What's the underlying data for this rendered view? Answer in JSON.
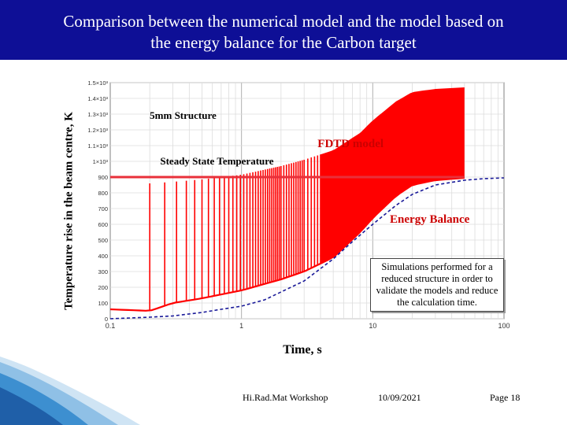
{
  "slide": {
    "title_line1": "Comparison between the numerical model and the model based on",
    "title_line2": "the energy balance for the Carbon target",
    "note": "Simulations performed for a reduced structure in order to validate the models and reduce the calculation time.",
    "footer": {
      "event": "Hi.Rad.Mat  Workshop",
      "date": "10/09/2021",
      "page": "Page 18"
    },
    "colors": {
      "title_bg": "#0e0f96",
      "title_text": "#ffffff",
      "fdtd": "#ff0000",
      "steady": "#e8303a",
      "energy": "#1a1a99",
      "label_red": "#cc0000"
    }
  },
  "chart_data": {
    "type": "line",
    "xlabel": "Time, s",
    "ylabel": "Temperature rise in the beam centre, K",
    "x_scale": "log",
    "xlim": [
      0.1,
      100
    ],
    "ylim": [
      0,
      1500
    ],
    "grid": true,
    "x_ticks": [
      {
        "value": 0.1,
        "label": "0.1"
      },
      {
        "value": 1,
        "label": "1"
      },
      {
        "value": 10,
        "label": "10"
      },
      {
        "value": 100,
        "label": "100"
      }
    ],
    "y_ticks": [
      {
        "value": 0,
        "label": "0"
      },
      {
        "value": 100,
        "label": "100"
      },
      {
        "value": 200,
        "label": "200"
      },
      {
        "value": 300,
        "label": "300"
      },
      {
        "value": 400,
        "label": "400"
      },
      {
        "value": 500,
        "label": "500"
      },
      {
        "value": 600,
        "label": "600"
      },
      {
        "value": 700,
        "label": "700"
      },
      {
        "value": 800,
        "label": "800"
      },
      {
        "value": 900,
        "label": "900"
      },
      {
        "value": 1000,
        "label": "1×10³"
      },
      {
        "value": 1100,
        "label": "1.1×10³"
      },
      {
        "value": 1200,
        "label": "1.2×10³"
      },
      {
        "value": 1300,
        "label": "1.3×10³"
      },
      {
        "value": 1400,
        "label": "1.4×10³"
      },
      {
        "value": 1500,
        "label": "1.5×10³"
      }
    ],
    "annotations": {
      "structure": "5mm Structure",
      "fdtd": "FDTD model",
      "steady": "Steady State Temperature",
      "energy": "Energy Balance"
    },
    "series": [
      {
        "name": "FDTD model",
        "kind": "pulsed-band",
        "pulse_times": [
          0.2,
          0.26,
          0.32,
          0.38,
          0.44,
          0.5,
          0.56,
          0.62,
          0.68,
          0.74,
          0.8,
          0.86,
          0.92,
          0.98,
          1.04,
          1.1,
          1.16,
          1.22,
          1.28,
          1.34,
          1.4,
          1.46,
          1.52,
          1.58,
          1.64,
          1.7,
          1.76,
          1.82,
          1.88,
          1.94,
          2.0,
          2.1,
          2.2,
          2.3,
          2.4,
          2.5,
          2.6,
          2.7,
          2.8,
          2.9,
          3.0,
          3.2,
          3.4,
          3.6,
          3.8,
          4.0
        ],
        "peak": [
          {
            "x": 0.2,
            "y": 860
          },
          {
            "x": 0.3,
            "y": 870
          },
          {
            "x": 0.5,
            "y": 885
          },
          {
            "x": 1.0,
            "y": 915
          },
          {
            "x": 2.0,
            "y": 970
          },
          {
            "x": 3.0,
            "y": 1010
          },
          {
            "x": 5.0,
            "y": 1070
          },
          {
            "x": 8.0,
            "y": 1180
          },
          {
            "x": 10.0,
            "y": 1260
          },
          {
            "x": 15.0,
            "y": 1380
          },
          {
            "x": 20.0,
            "y": 1440
          },
          {
            "x": 30.0,
            "y": 1460
          },
          {
            "x": 50.0,
            "y": 1470
          }
        ],
        "trough": [
          {
            "x": 0.1,
            "y": 60
          },
          {
            "x": 0.2,
            "y": 50
          },
          {
            "x": 0.3,
            "y": 100
          },
          {
            "x": 0.5,
            "y": 130
          },
          {
            "x": 1.0,
            "y": 180
          },
          {
            "x": 2.0,
            "y": 250
          },
          {
            "x": 3.0,
            "y": 300
          },
          {
            "x": 5.0,
            "y": 390
          },
          {
            "x": 8.0,
            "y": 550
          },
          {
            "x": 10.0,
            "y": 640
          },
          {
            "x": 15.0,
            "y": 780
          },
          {
            "x": 20.0,
            "y": 850
          },
          {
            "x": 30.0,
            "y": 880
          },
          {
            "x": 50.0,
            "y": 895
          }
        ],
        "end_time": 50.0,
        "color": "#ff0000"
      },
      {
        "name": "Steady State Temperature",
        "kind": "hline",
        "y": 900,
        "color": "#e8303a"
      },
      {
        "name": "Energy Balance",
        "kind": "dashed",
        "points": [
          {
            "x": 0.1,
            "y": 0
          },
          {
            "x": 0.2,
            "y": 10
          },
          {
            "x": 0.3,
            "y": 18
          },
          {
            "x": 0.5,
            "y": 40
          },
          {
            "x": 0.7,
            "y": 60
          },
          {
            "x": 1.0,
            "y": 80
          },
          {
            "x": 1.5,
            "y": 120
          },
          {
            "x": 2.0,
            "y": 170
          },
          {
            "x": 3.0,
            "y": 240
          },
          {
            "x": 5.0,
            "y": 380
          },
          {
            "x": 7.0,
            "y": 490
          },
          {
            "x": 10.0,
            "y": 600
          },
          {
            "x": 15.0,
            "y": 720
          },
          {
            "x": 20.0,
            "y": 790
          },
          {
            "x": 30.0,
            "y": 850
          },
          {
            "x": 50.0,
            "y": 880
          },
          {
            "x": 70.0,
            "y": 890
          },
          {
            "x": 100.0,
            "y": 895
          }
        ],
        "color": "#1a1a99"
      }
    ]
  }
}
